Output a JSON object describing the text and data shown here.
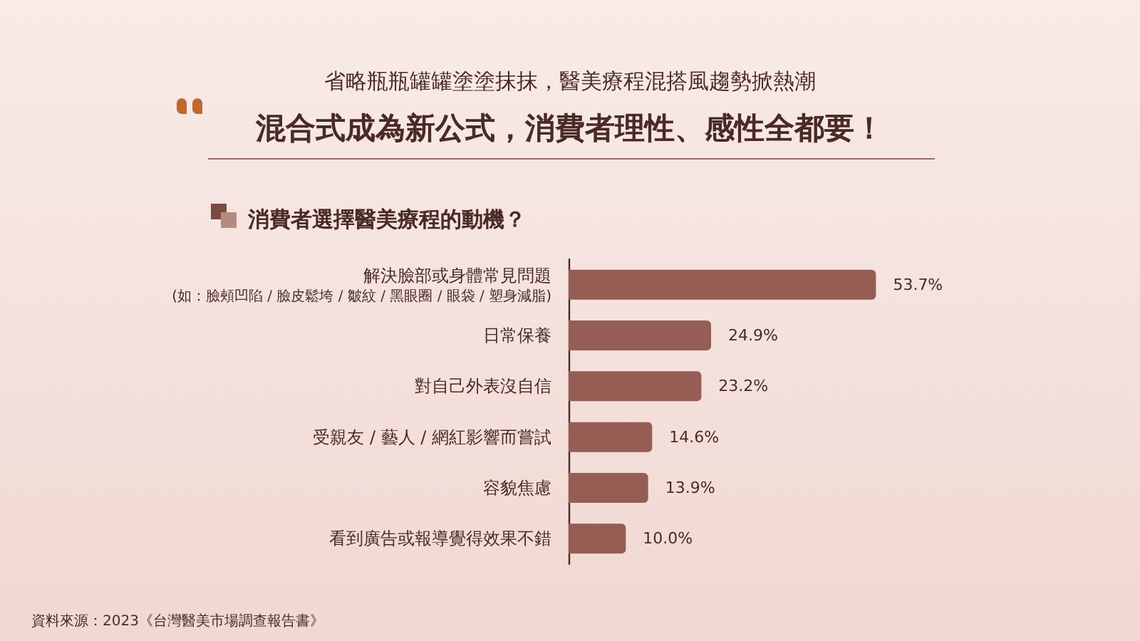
{
  "chart_data": {
    "type": "bar",
    "orientation": "horizontal",
    "subtitle": "省略瓶瓶罐罐塗塗抹抹，醫美療程混搭風趨勢掀熱潮",
    "title": "混合式成為新公式，消費者理性、感性全都要！",
    "annotations": [
      "消費者選擇醫美療程的動機？",
      "資料來源：2023《台灣醫美市場調查報告書》"
    ],
    "categories": [
      "解決臉部或身體常見問題\n(如：臉頰凹陷 / 臉皮鬆垮 / 皺紋 / 黑眼圈 / 眼袋 / 塑身減脂)",
      "日常保養",
      "對自己外表沒自信",
      "受親友 / 藝人 / 網紅影響而嘗試",
      "容貌焦慮",
      "看到廣告或報導覺得效果不錯"
    ],
    "values": [
      53.7,
      24.9,
      23.2,
      14.6,
      13.9,
      10.0
    ],
    "value_labels": [
      "53.7%",
      "24.9%",
      "23.2%",
      "14.6%",
      "13.9%",
      "10.0%"
    ],
    "color": "#965d55"
  }
}
